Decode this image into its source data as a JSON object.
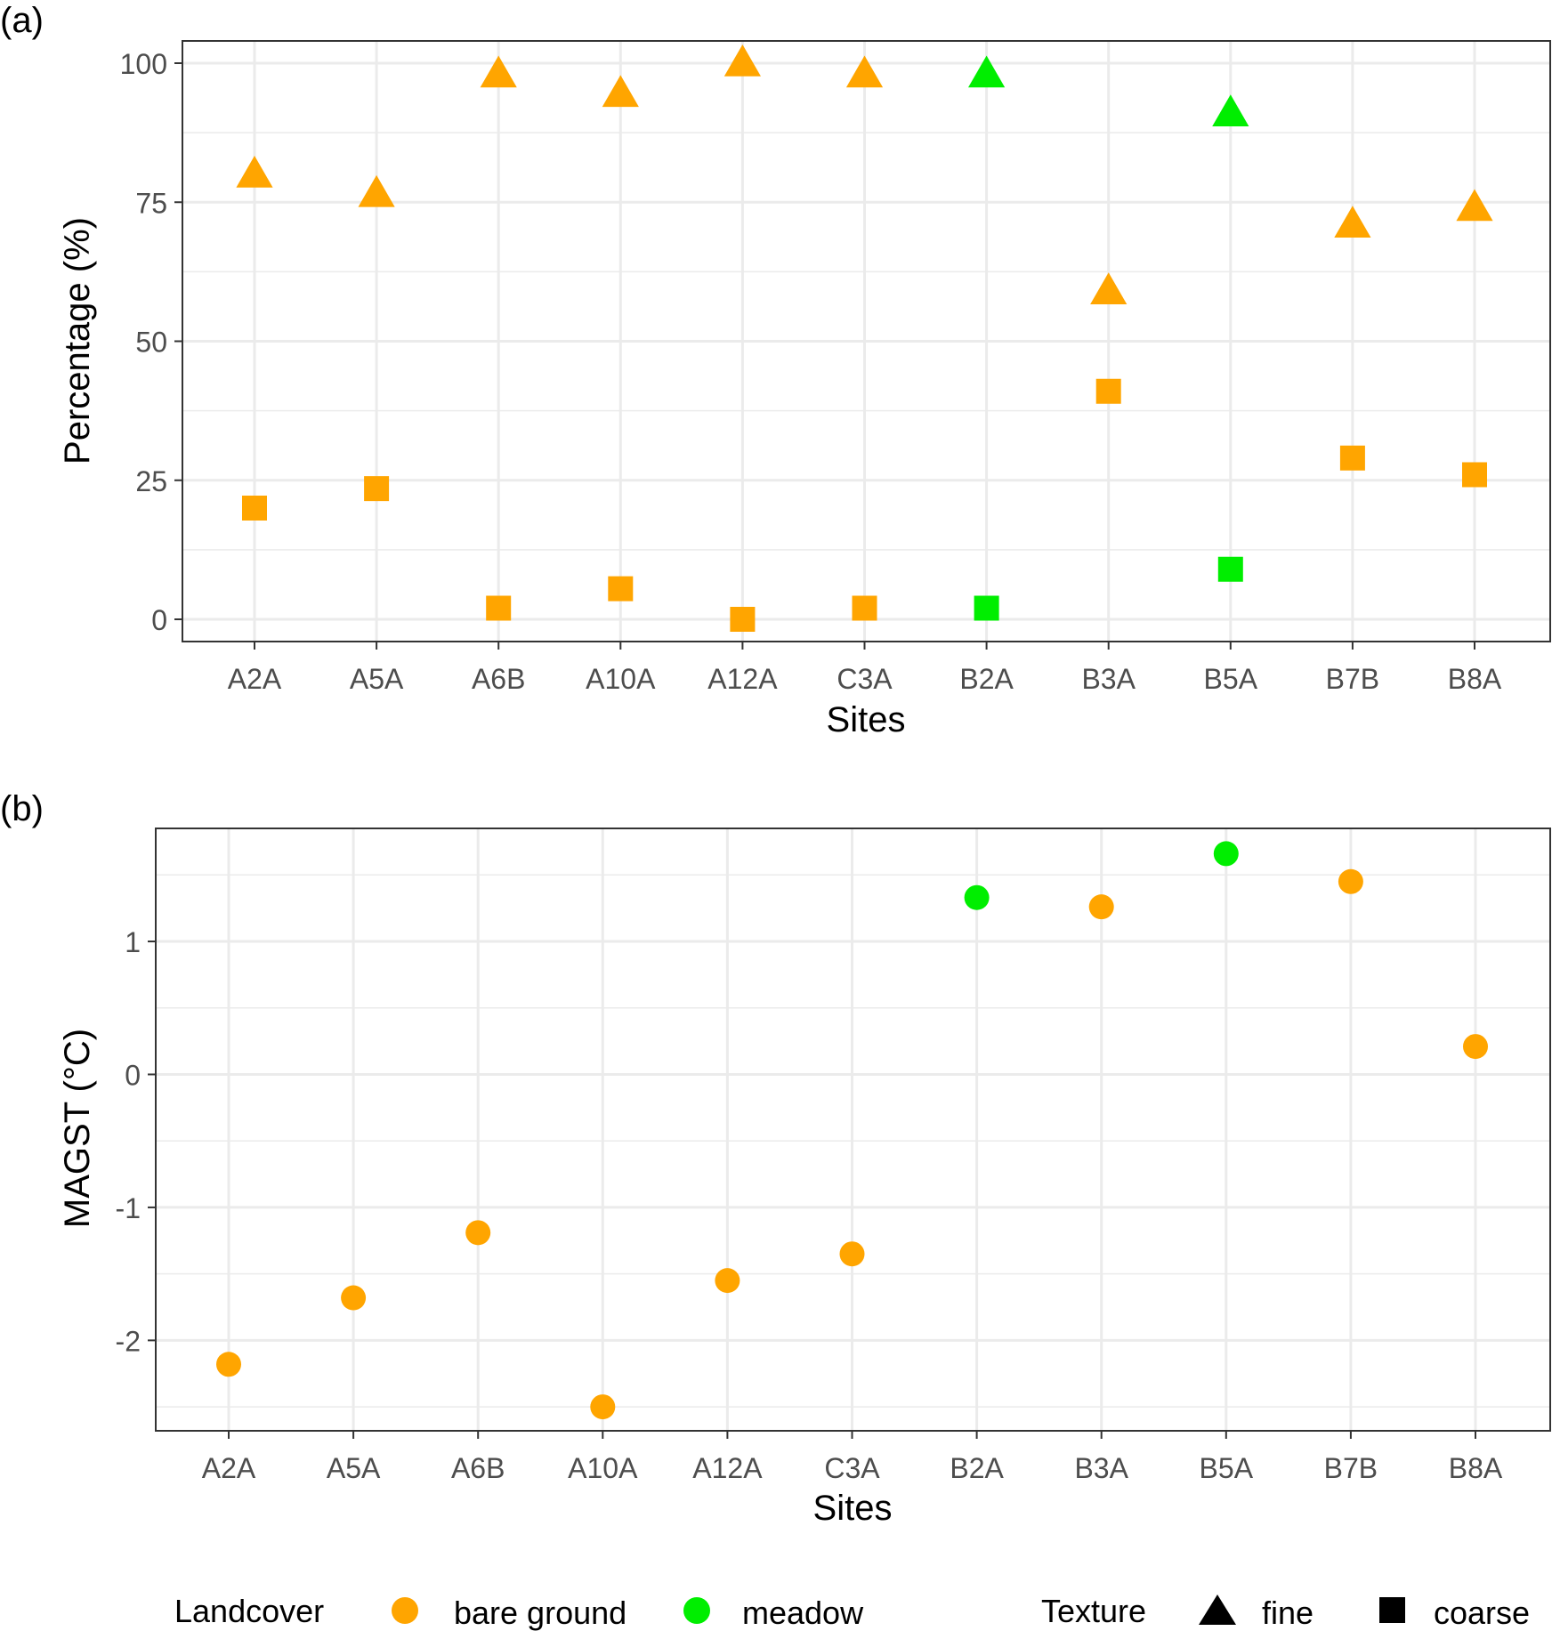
{
  "colors": {
    "bare_ground": "#FFA500",
    "meadow": "#00EE00",
    "grid": "#EBEBEB",
    "panel_border": "#333333",
    "tick_label": "#4D4D4D",
    "text": "#000000"
  },
  "legend": {
    "landcover_title": "Landcover",
    "landcover_items": [
      {
        "label": "bare ground",
        "color": "#FFA500"
      },
      {
        "label": "meadow",
        "color": "#00EE00"
      }
    ],
    "texture_title": "Texture",
    "texture_items": [
      {
        "label": "fine",
        "shape": "triangle"
      },
      {
        "label": "coarse",
        "shape": "square"
      }
    ]
  },
  "chart_data": [
    {
      "panel_tag": "(a)",
      "type": "scatter",
      "xlabel": "Sites",
      "ylabel": "Percentage (%)",
      "categories": [
        "A2A",
        "A5A",
        "A6B",
        "A10A",
        "A12A",
        "C3A",
        "B2A",
        "B3A",
        "B5A",
        "B7B",
        "B8A"
      ],
      "landcover": [
        "bare ground",
        "bare ground",
        "bare ground",
        "bare ground",
        "bare ground",
        "bare ground",
        "meadow",
        "bare ground",
        "meadow",
        "bare ground",
        "bare ground"
      ],
      "ylim": [
        -4,
        104
      ],
      "yticks": [
        0,
        25,
        50,
        75,
        100
      ],
      "grid": true,
      "series": [
        {
          "name": "fine",
          "shape": "triangle",
          "values": [
            80,
            76.5,
            98,
            94.5,
            100,
            98,
            98,
            59,
            91,
            71,
            74
          ]
        },
        {
          "name": "coarse",
          "shape": "square",
          "values": [
            20,
            23.5,
            2,
            5.5,
            0,
            2,
            2,
            41,
            9,
            29,
            26
          ]
        }
      ]
    },
    {
      "panel_tag": "(b)",
      "type": "scatter",
      "xlabel": "Sites",
      "ylabel": "MAGST (°C)",
      "categories": [
        "A2A",
        "A5A",
        "A6B",
        "A10A",
        "A12A",
        "C3A",
        "B2A",
        "B3A",
        "B5A",
        "B7B",
        "B8A"
      ],
      "landcover": [
        "bare ground",
        "bare ground",
        "bare ground",
        "bare ground",
        "bare ground",
        "bare ground",
        "meadow",
        "bare ground",
        "meadow",
        "bare ground",
        "bare ground"
      ],
      "ylim": [
        -2.68,
        1.85
      ],
      "yticks": [
        -2,
        -1,
        0,
        1
      ],
      "grid": true,
      "series": [
        {
          "name": "MAGST",
          "shape": "circle",
          "values": [
            -2.18,
            -1.68,
            -1.19,
            -2.5,
            -1.55,
            -1.35,
            1.33,
            1.26,
            1.66,
            1.45,
            0.21
          ]
        }
      ]
    }
  ]
}
